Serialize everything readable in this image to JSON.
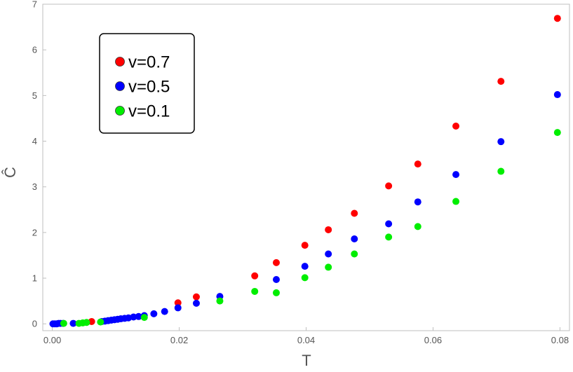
{
  "chart_data": {
    "type": "scatter",
    "xlabel": "T",
    "ylabel": "Ĉ",
    "xlim": [
      -0.0015,
      0.0815
    ],
    "ylim": [
      -0.15,
      7.0
    ],
    "x_ticks": [
      0.0,
      0.02,
      0.04,
      0.06,
      0.08
    ],
    "x_tick_labels": [
      "0.00",
      "0.02",
      "0.04",
      "0.06",
      "0.08"
    ],
    "y_ticks": [
      0,
      1,
      2,
      3,
      4,
      5,
      6,
      7
    ],
    "y_tick_labels": [
      "0",
      "1",
      "2",
      "3",
      "4",
      "5",
      "6",
      "7"
    ],
    "legend_position": "top-left",
    "series": [
      {
        "name": "v=0.7",
        "color": "#ff0000",
        "x": [
          0.0062,
          0.0198,
          0.0227,
          0.0319,
          0.0353,
          0.0398,
          0.0435,
          0.0476,
          0.053,
          0.0576,
          0.0636,
          0.0707,
          0.0796
        ],
        "y": [
          0.05,
          0.46,
          0.59,
          1.05,
          1.34,
          1.72,
          2.06,
          2.42,
          3.02,
          3.5,
          4.33,
          5.31,
          6.69
        ]
      },
      {
        "name": "v=0.5",
        "color": "#0000ff",
        "x": [
          0.0001,
          0.0004,
          0.0007,
          0.001,
          0.0013,
          0.0017,
          0.0033,
          0.0078,
          0.0083,
          0.0088,
          0.0093,
          0.0098,
          0.0103,
          0.0108,
          0.0114,
          0.012,
          0.0128,
          0.0136,
          0.0145,
          0.016,
          0.0177,
          0.0198,
          0.0227,
          0.0264,
          0.0353,
          0.0398,
          0.0435,
          0.0476,
          0.053,
          0.0576,
          0.0636,
          0.0707,
          0.0796
        ],
        "y": [
          0.0,
          0.0,
          0.0,
          0.01,
          0.01,
          0.01,
          0.01,
          0.05,
          0.06,
          0.07,
          0.08,
          0.09,
          0.1,
          0.11,
          0.12,
          0.13,
          0.15,
          0.16,
          0.18,
          0.22,
          0.27,
          0.35,
          0.45,
          0.6,
          0.97,
          1.26,
          1.53,
          1.86,
          2.19,
          2.67,
          3.27,
          3.99,
          5.02
        ]
      },
      {
        "name": "v=0.1",
        "color": "#00ee00",
        "x": [
          0.0018,
          0.0042,
          0.0048,
          0.0054,
          0.0076,
          0.0145,
          0.0264,
          0.0319,
          0.0353,
          0.0398,
          0.0435,
          0.0476,
          0.053,
          0.0576,
          0.0636,
          0.0707,
          0.0796
        ],
        "y": [
          0.01,
          0.01,
          0.02,
          0.03,
          0.04,
          0.14,
          0.5,
          0.71,
          0.68,
          1.01,
          1.24,
          1.53,
          1.9,
          2.13,
          2.68,
          3.34,
          4.19
        ]
      }
    ]
  }
}
